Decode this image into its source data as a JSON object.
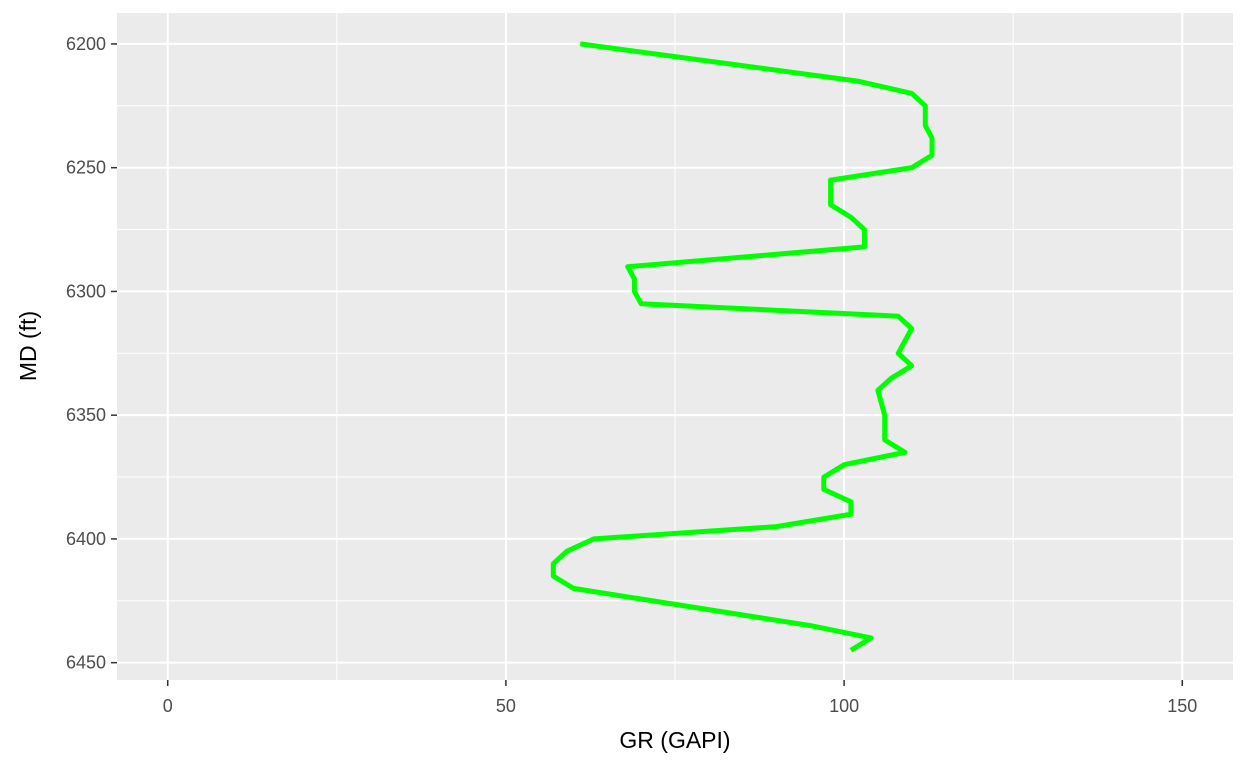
{
  "chart_data": {
    "type": "line",
    "title": "",
    "xlabel": "GR (GAPI)",
    "ylabel": "MD (ft)",
    "xlim": [
      -7.5,
      157.5
    ],
    "ylim": [
      6187.5,
      6457
    ],
    "y_reversed": true,
    "x_ticks": [
      "0",
      "50",
      "100",
      "150"
    ],
    "y_ticks": [
      "6200",
      "6250",
      "6300",
      "6350",
      "6400",
      "6450"
    ],
    "grid": true,
    "panel_background": "#ebebeb",
    "grid_color": "#ffffff",
    "series_color": "#00ff00",
    "series": [
      {
        "x": [
          61,
          102,
          110,
          112,
          112,
          113,
          113,
          110,
          98,
          98,
          101,
          103,
          103,
          90,
          68,
          69,
          69,
          70,
          108,
          110,
          108,
          110,
          107,
          105,
          106,
          106,
          109,
          100,
          97,
          97,
          101,
          101,
          90,
          63,
          59,
          57,
          57,
          60,
          95,
          104,
          101
        ],
        "y": [
          6200,
          6215,
          6220,
          6225,
          6233,
          6238,
          6245,
          6250,
          6255,
          6265,
          6270,
          6275,
          6282,
          6285,
          6290,
          6295,
          6300,
          6305,
          6310,
          6315,
          6325,
          6330,
          6335,
          6340,
          6350,
          6360,
          6365,
          6370,
          6375,
          6380,
          6385,
          6390,
          6395,
          6400,
          6405,
          6410,
          6415,
          6420,
          6435,
          6440,
          6445
        ]
      }
    ]
  }
}
